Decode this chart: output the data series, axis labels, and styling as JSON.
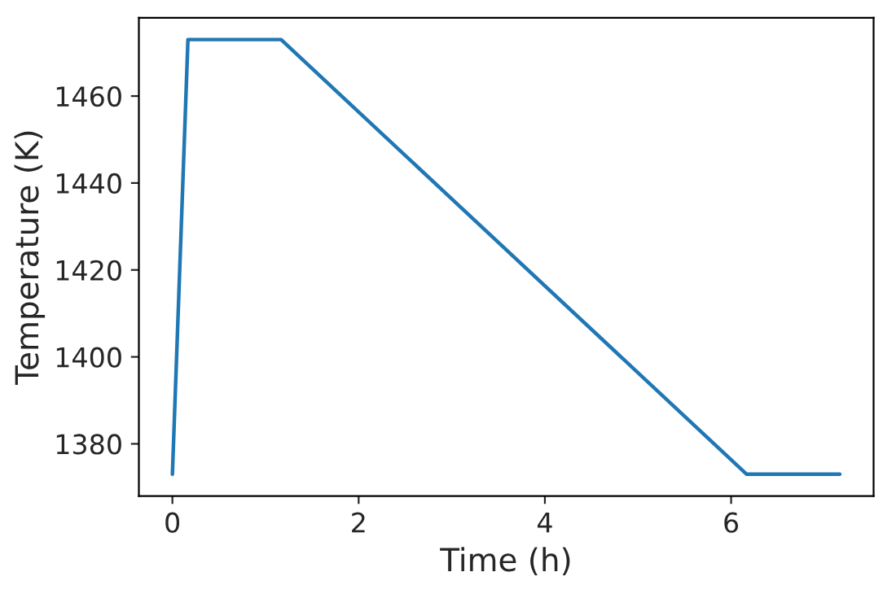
{
  "chart_data": {
    "type": "line",
    "xlabel": "Time (h)",
    "ylabel": "Temperature (K)",
    "x": [
      0,
      0.167,
      1.167,
      6.167,
      7.167
    ],
    "series": [
      {
        "color": "#1f77b4",
        "values": [
          1373,
          1473,
          1473,
          1373,
          1373
        ]
      }
    ],
    "xlim": [
      -0.36,
      7.53
    ],
    "ylim": [
      1368,
      1478
    ],
    "xticks": [
      0,
      2,
      4,
      6
    ],
    "yticks": [
      1380,
      1400,
      1420,
      1440,
      1460
    ],
    "grid": false,
    "legend": false
  }
}
